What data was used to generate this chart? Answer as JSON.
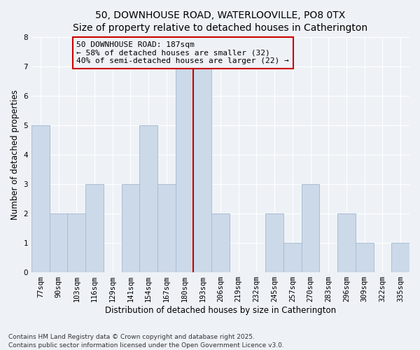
{
  "title": "50, DOWNHOUSE ROAD, WATERLOOVILLE, PO8 0TX",
  "subtitle": "Size of property relative to detached houses in Catherington",
  "xlabel": "Distribution of detached houses by size in Catherington",
  "ylabel": "Number of detached properties",
  "bar_labels": [
    "77sqm",
    "90sqm",
    "103sqm",
    "116sqm",
    "129sqm",
    "141sqm",
    "154sqm",
    "167sqm",
    "180sqm",
    "193sqm",
    "206sqm",
    "219sqm",
    "232sqm",
    "245sqm",
    "257sqm",
    "270sqm",
    "283sqm",
    "296sqm",
    "309sqm",
    "322sqm",
    "335sqm"
  ],
  "bar_values": [
    5,
    2,
    2,
    3,
    0,
    3,
    5,
    3,
    7,
    7,
    2,
    0,
    0,
    2,
    1,
    3,
    0,
    2,
    1,
    0,
    1
  ],
  "bar_color": "#ccd9e8",
  "bar_edgecolor": "#aabdd4",
  "vline_x_label": "180sqm",
  "vline_color": "#cc0000",
  "annotation_text": "50 DOWNHOUSE ROAD: 187sqm\n← 58% of detached houses are smaller (32)\n40% of semi-detached houses are larger (22) →",
  "annotation_box_edgecolor": "#cc0000",
  "ylim": [
    0,
    8
  ],
  "yticks": [
    0,
    1,
    2,
    3,
    4,
    5,
    6,
    7,
    8
  ],
  "footnote": "Contains HM Land Registry data © Crown copyright and database right 2025.\nContains public sector information licensed under the Open Government Licence v3.0.",
  "bg_color": "#eef2f7",
  "grid_color": "#ffffff",
  "title_fontsize": 10,
  "xlabel_fontsize": 8.5,
  "ylabel_fontsize": 8.5,
  "tick_fontsize": 7.5,
  "annot_fontsize": 8,
  "footnote_fontsize": 6.5
}
